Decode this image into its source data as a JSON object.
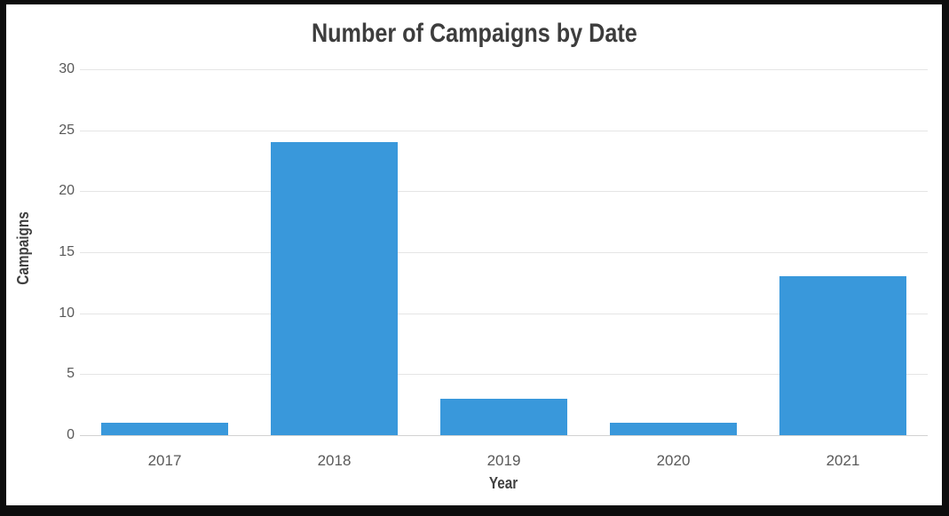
{
  "chart_data": {
    "type": "bar",
    "title": "Number of Campaigns by Date",
    "xlabel": "Year",
    "ylabel": "Campaigns",
    "categories": [
      "2017",
      "2018",
      "2019",
      "2020",
      "2021"
    ],
    "values": [
      1,
      24,
      3,
      1,
      13
    ],
    "yticks": [
      0,
      5,
      10,
      15,
      20,
      25,
      30
    ],
    "ylim": [
      0,
      30
    ],
    "grid": true,
    "legend": "none",
    "bar_color": "#3998db",
    "gridline_color": "#e5e5e5",
    "baseline_color": "#d2d2d2",
    "tick_label_color": "#595959",
    "title_color": "#3d3d3d",
    "axis_label_color": "#404040",
    "frame_border_color": "#0d0d0d",
    "background_color": "#ffffff"
  }
}
